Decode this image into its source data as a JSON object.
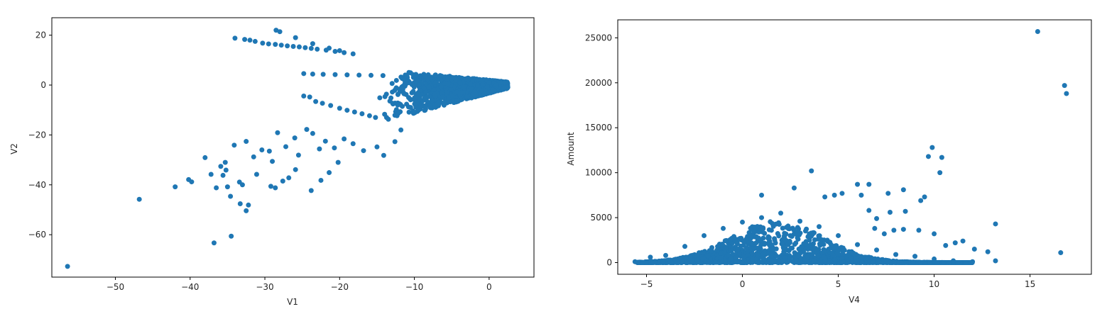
{
  "chart_data": [
    {
      "type": "scatter",
      "xlabel": "V1",
      "ylabel": "V2",
      "xlim": [
        -58.5,
        6
      ],
      "ylim": [
        -77,
        27
      ],
      "xticks": [
        -50,
        -40,
        -30,
        -20,
        -10,
        0
      ],
      "yticks": [
        -60,
        -40,
        -20,
        0,
        20
      ],
      "grid": false,
      "color": "#1f77b4",
      "points": [
        {
          "x": -56.4,
          "y": -72.7
        },
        {
          "x": -46.8,
          "y": -45.8
        },
        {
          "x": -42.0,
          "y": -40.8
        },
        {
          "x": -40.2,
          "y": -37.9
        },
        {
          "x": -39.8,
          "y": -38.8
        },
        {
          "x": -36.8,
          "y": -63.3
        },
        {
          "x": -34.5,
          "y": -60.6
        },
        {
          "x": -33.3,
          "y": -47.6
        },
        {
          "x": -32.5,
          "y": -50.4
        },
        {
          "x": -32.2,
          "y": -48.1
        },
        {
          "x": -35.0,
          "y": -40.8
        },
        {
          "x": -36.5,
          "y": -41.2
        },
        {
          "x": -37.2,
          "y": -35.8
        },
        {
          "x": -35.6,
          "y": -36.2
        },
        {
          "x": -35.2,
          "y": -34.1
        },
        {
          "x": -34.6,
          "y": -44.6
        },
        {
          "x": -33.4,
          "y": -38.9
        },
        {
          "x": -33.0,
          "y": -40.0
        },
        {
          "x": -31.1,
          "y": -35.8
        },
        {
          "x": -29.2,
          "y": -40.6
        },
        {
          "x": -28.6,
          "y": -41.2
        },
        {
          "x": -27.6,
          "y": -38.5
        },
        {
          "x": -26.8,
          "y": -37.2
        },
        {
          "x": -25.9,
          "y": -33.9
        },
        {
          "x": -23.8,
          "y": -42.3
        },
        {
          "x": -22.5,
          "y": -38.2
        },
        {
          "x": -21.4,
          "y": -35.1
        },
        {
          "x": -20.2,
          "y": -31.0
        },
        {
          "x": -35.3,
          "y": -31.0
        },
        {
          "x": -35.9,
          "y": -32.6
        },
        {
          "x": -38.0,
          "y": -29.1
        },
        {
          "x": -34.1,
          "y": -24.1
        },
        {
          "x": -32.5,
          "y": -22.6
        },
        {
          "x": -31.5,
          "y": -28.8
        },
        {
          "x": -30.4,
          "y": -26.0
        },
        {
          "x": -29.0,
          "y": -30.6
        },
        {
          "x": -29.4,
          "y": -26.5
        },
        {
          "x": -28.3,
          "y": -19.1
        },
        {
          "x": -27.2,
          "y": -24.7
        },
        {
          "x": -26.0,
          "y": -21.2
        },
        {
          "x": -25.5,
          "y": -28.1
        },
        {
          "x": -24.4,
          "y": -17.8
        },
        {
          "x": -23.6,
          "y": -19.4
        },
        {
          "x": -22.7,
          "y": -25.6
        },
        {
          "x": -21.9,
          "y": -22.5
        },
        {
          "x": -20.7,
          "y": -25.2
        },
        {
          "x": -19.4,
          "y": -21.6
        },
        {
          "x": -18.2,
          "y": -23.5
        },
        {
          "x": -16.8,
          "y": -26.3
        },
        {
          "x": -15.0,
          "y": -24.8
        },
        {
          "x": -14.1,
          "y": -28.2
        },
        {
          "x": -12.6,
          "y": -22.7
        },
        {
          "x": -11.8,
          "y": -18.0
        },
        {
          "x": -24.8,
          "y": -4.4
        },
        {
          "x": -24.0,
          "y": -4.8
        },
        {
          "x": -23.2,
          "y": -6.6
        },
        {
          "x": -22.3,
          "y": -7.3
        },
        {
          "x": -21.2,
          "y": -8.2
        },
        {
          "x": -20.0,
          "y": -9.3
        },
        {
          "x": -19.0,
          "y": -10.1
        },
        {
          "x": -18.0,
          "y": -10.8
        },
        {
          "x": -17.0,
          "y": -11.5
        },
        {
          "x": -16.0,
          "y": -12.3
        },
        {
          "x": -15.2,
          "y": -13.0
        },
        {
          "x": -24.8,
          "y": 4.6
        },
        {
          "x": -23.6,
          "y": 4.4
        },
        {
          "x": -22.2,
          "y": 4.3
        },
        {
          "x": -20.6,
          "y": 4.2
        },
        {
          "x": -19.0,
          "y": 4.1
        },
        {
          "x": -17.4,
          "y": 4.0
        },
        {
          "x": -15.8,
          "y": 3.9
        },
        {
          "x": -14.2,
          "y": 3.8
        },
        {
          "x": -34.0,
          "y": 18.8
        },
        {
          "x": -32.7,
          "y": 18.3
        },
        {
          "x": -32.0,
          "y": 18.0
        },
        {
          "x": -31.3,
          "y": 17.5
        },
        {
          "x": -30.3,
          "y": 16.8
        },
        {
          "x": -29.5,
          "y": 16.5
        },
        {
          "x": -28.6,
          "y": 16.3
        },
        {
          "x": -27.8,
          "y": 16.0
        },
        {
          "x": -27.0,
          "y": 15.7
        },
        {
          "x": -26.2,
          "y": 15.5
        },
        {
          "x": -25.4,
          "y": 15.3
        },
        {
          "x": -24.6,
          "y": 15.0
        },
        {
          "x": -23.8,
          "y": 14.7
        },
        {
          "x": -23.0,
          "y": 14.4
        },
        {
          "x": -21.8,
          "y": 14.0
        },
        {
          "x": -20.6,
          "y": 13.5
        },
        {
          "x": -19.4,
          "y": 13.0
        },
        {
          "x": -18.2,
          "y": 12.5
        },
        {
          "x": -28.5,
          "y": 22.0
        },
        {
          "x": -28.0,
          "y": 21.4
        },
        {
          "x": -25.9,
          "y": 19.0
        },
        {
          "x": -23.6,
          "y": 16.6
        },
        {
          "x": -21.4,
          "y": 14.8
        },
        {
          "x": -20.0,
          "y": 13.8
        },
        {
          "x": -1.0,
          "y": 2.0
        },
        {
          "x": 0.0,
          "y": 1.0
        },
        {
          "x": 1.0,
          "y": 0.0
        },
        {
          "x": 2.0,
          "y": -1.0
        },
        {
          "x": 1.5,
          "y": 1.0
        },
        {
          "x": 0.5,
          "y": -2.0
        }
      ]
    },
    {
      "type": "scatter",
      "xlabel": "V4",
      "ylabel": "Amount",
      "xlim": [
        -6.5,
        18.2
      ],
      "ylim": [
        -1300,
        27000
      ],
      "xticks": [
        -5,
        0,
        5,
        10,
        15
      ],
      "yticks": [
        0,
        5000,
        10000,
        15000,
        20000,
        25000
      ],
      "grid": false,
      "color": "#1f77b4",
      "points": [
        {
          "x": 15.4,
          "y": 25700
        },
        {
          "x": 16.8,
          "y": 19700
        },
        {
          "x": 16.9,
          "y": 18800
        },
        {
          "x": 9.9,
          "y": 12800
        },
        {
          "x": 9.7,
          "y": 11800
        },
        {
          "x": 10.4,
          "y": 11700
        },
        {
          "x": 10.3,
          "y": 10000
        },
        {
          "x": 3.6,
          "y": 10200
        },
        {
          "x": 2.7,
          "y": 8300
        },
        {
          "x": 1.0,
          "y": 7500
        },
        {
          "x": 6.0,
          "y": 8700
        },
        {
          "x": 6.6,
          "y": 8700
        },
        {
          "x": 7.6,
          "y": 7700
        },
        {
          "x": 8.4,
          "y": 8100
        },
        {
          "x": 9.5,
          "y": 7300
        },
        {
          "x": 9.3,
          "y": 6900
        },
        {
          "x": 6.2,
          "y": 7500
        },
        {
          "x": 5.2,
          "y": 7700
        },
        {
          "x": 4.8,
          "y": 7500
        },
        {
          "x": 4.3,
          "y": 7300
        },
        {
          "x": 13.2,
          "y": 4300
        },
        {
          "x": 16.6,
          "y": 1100
        },
        {
          "x": 13.2,
          "y": 200
        },
        {
          "x": 12.8,
          "y": 1200
        },
        {
          "x": 12.1,
          "y": 1500
        },
        {
          "x": 11.5,
          "y": 2400
        },
        {
          "x": 11.1,
          "y": 2200
        },
        {
          "x": 10.6,
          "y": 1900
        },
        {
          "x": 10.0,
          "y": 3200
        },
        {
          "x": 9.2,
          "y": 3600
        },
        {
          "x": 8.4,
          "y": 3700
        },
        {
          "x": 7.9,
          "y": 3600
        },
        {
          "x": 7.4,
          "y": 3200
        },
        {
          "x": 6.9,
          "y": 3800
        },
        {
          "x": 7.0,
          "y": 4900
        },
        {
          "x": 8.5,
          "y": 5700
        },
        {
          "x": 7.7,
          "y": 5600
        },
        {
          "x": 6.6,
          "y": 5800
        },
        {
          "x": -5.2,
          "y": 0
        },
        {
          "x": -5.6,
          "y": 100
        },
        {
          "x": -4.8,
          "y": 600
        },
        {
          "x": -4.0,
          "y": 800
        },
        {
          "x": -3.0,
          "y": 1800
        },
        {
          "x": -2.0,
          "y": 3000
        },
        {
          "x": -1.0,
          "y": 3800
        },
        {
          "x": 0.0,
          "y": 4500
        },
        {
          "x": 1.0,
          "y": 5000
        },
        {
          "x": 2.0,
          "y": 5500
        },
        {
          "x": 3.0,
          "y": 4600
        },
        {
          "x": 4.0,
          "y": 4000
        },
        {
          "x": 5.0,
          "y": 3000
        },
        {
          "x": 6.0,
          "y": 2000
        },
        {
          "x": 7.0,
          "y": 1400
        },
        {
          "x": 8.0,
          "y": 900
        },
        {
          "x": 9.0,
          "y": 700
        },
        {
          "x": 10.0,
          "y": 400
        },
        {
          "x": 11.0,
          "y": 200
        },
        {
          "x": 12.0,
          "y": 100
        },
        {
          "x": 0.5,
          "y": 1000
        },
        {
          "x": 1.5,
          "y": 2000
        },
        {
          "x": 2.5,
          "y": 3000
        },
        {
          "x": -0.5,
          "y": 1500
        },
        {
          "x": 3.5,
          "y": 2500
        },
        {
          "x": 4.5,
          "y": 1500
        },
        {
          "x": 5.5,
          "y": 800
        },
        {
          "x": 6.5,
          "y": 500
        }
      ]
    }
  ]
}
